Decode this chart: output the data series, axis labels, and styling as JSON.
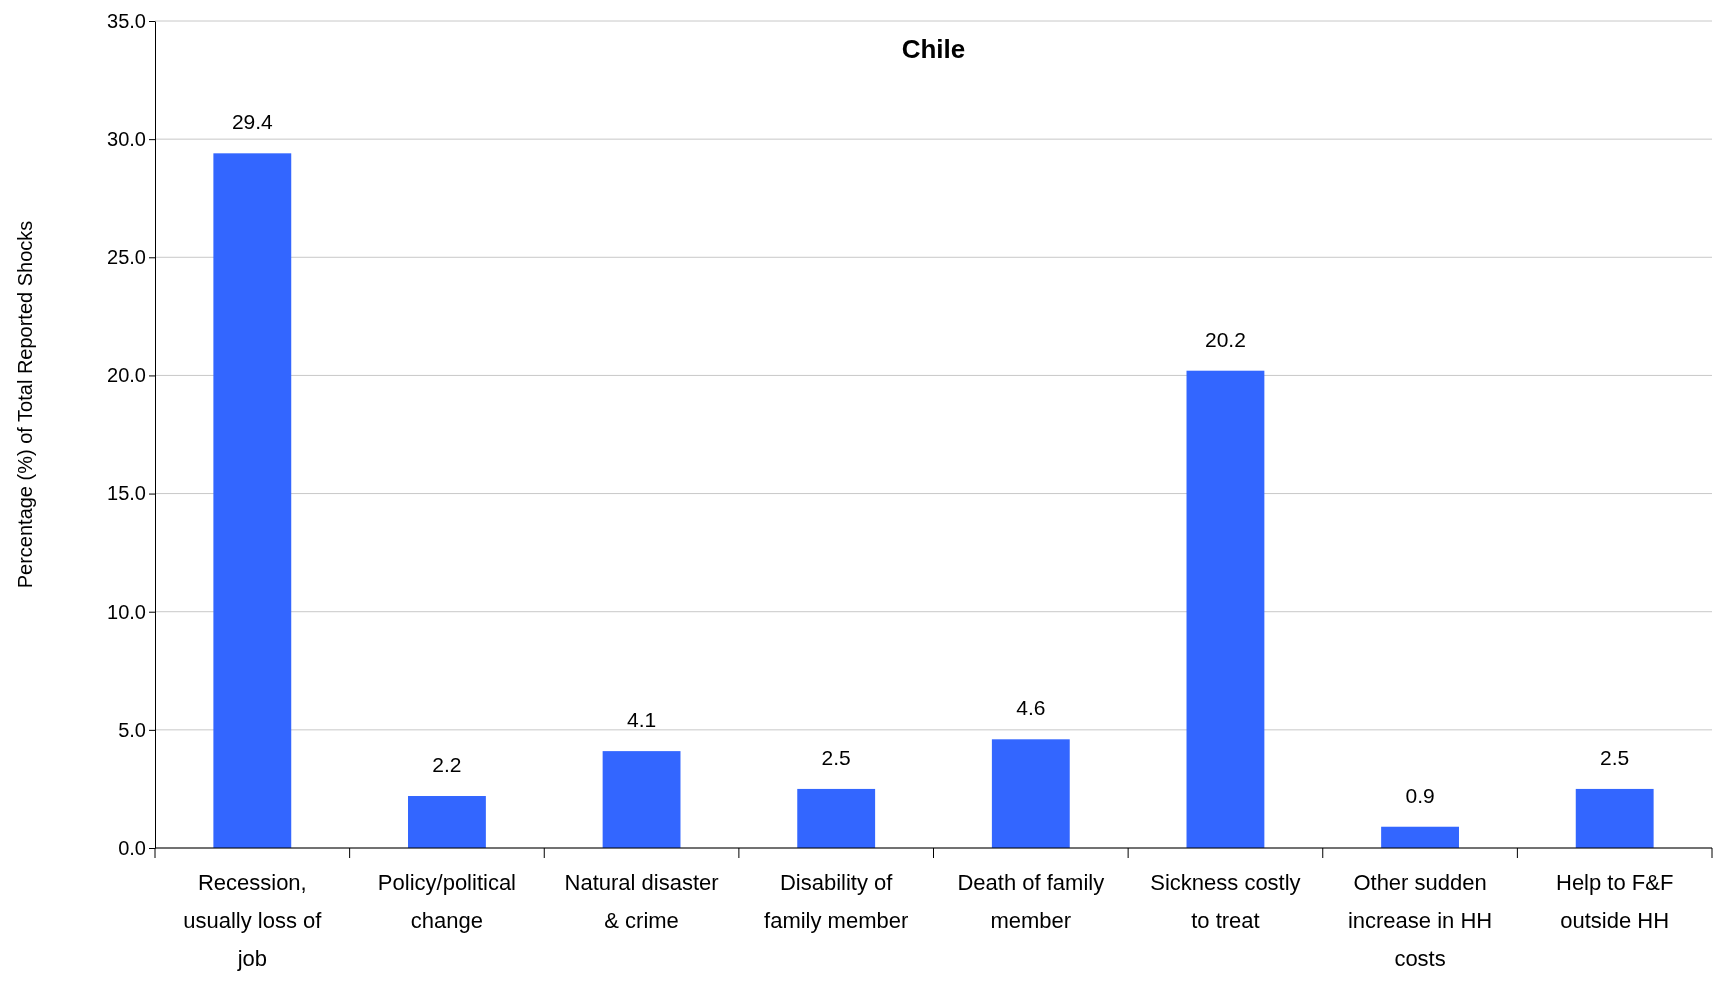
{
  "chart_data": {
    "type": "bar",
    "title": "Chile",
    "ylabel": "Percentage (%) of Total Reported Shocks",
    "categories": [
      "Recession, usually loss of job",
      "Policy/political change",
      "Natural disaster & crime",
      "Disability of family member",
      "Death of family member",
      "Sickness costly to treat",
      "Other sudden increase in HH costs",
      "Help to F&F outside HH"
    ],
    "values": [
      29.4,
      2.2,
      4.1,
      2.5,
      4.6,
      20.2,
      0.9,
      2.5
    ],
    "color": "#3366ff",
    "ylim": [
      0,
      35
    ],
    "yticks": [
      {
        "value": 0,
        "label": "0.0"
      },
      {
        "value": 5,
        "label": "5.0"
      },
      {
        "value": 10,
        "label": "10.0"
      },
      {
        "value": 15,
        "label": "15.0"
      },
      {
        "value": 20,
        "label": "20.0"
      },
      {
        "value": 25,
        "label": "25.0"
      },
      {
        "value": 30,
        "label": "30.0"
      },
      {
        "value": 35,
        "label": "35.0"
      }
    ],
    "grid": "y",
    "data_labels": true
  }
}
